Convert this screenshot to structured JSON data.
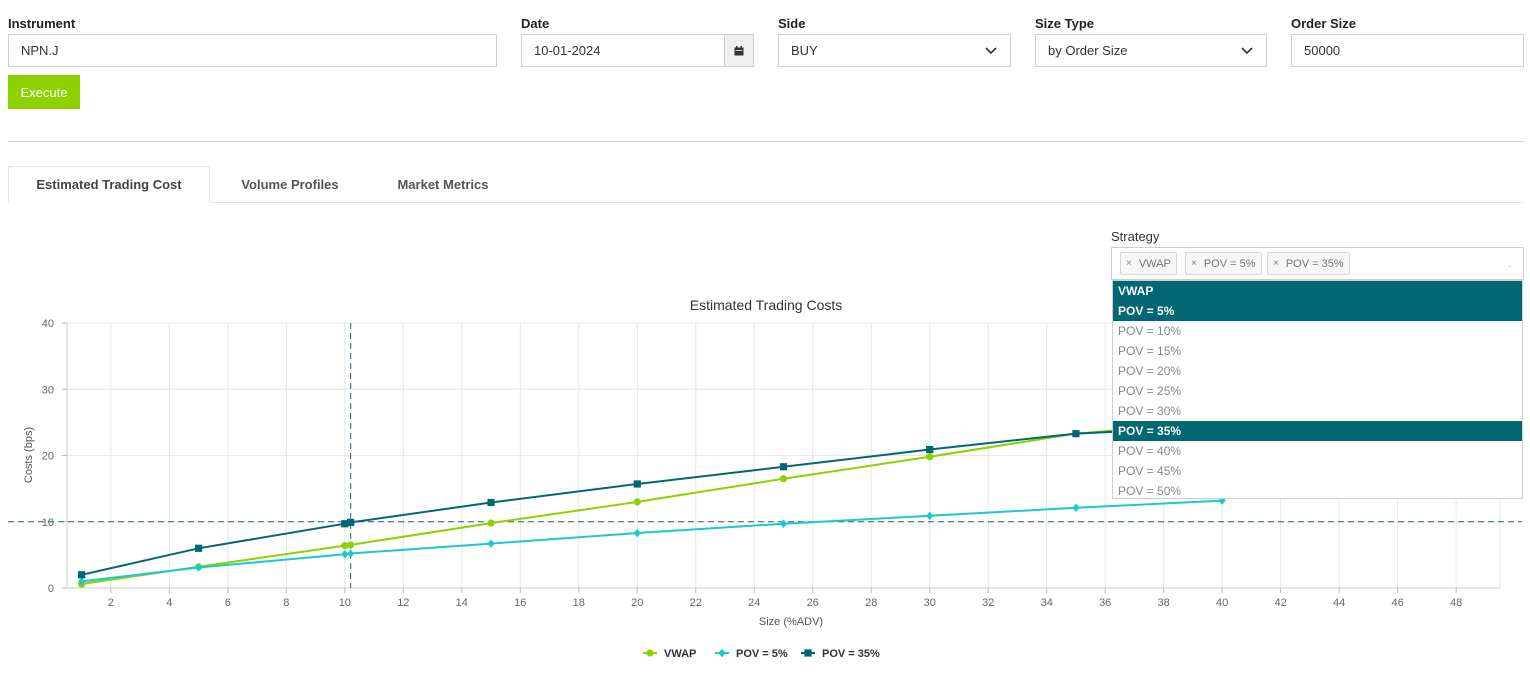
{
  "form": {
    "instrument": {
      "label": "Instrument",
      "value": "NPN.J"
    },
    "date": {
      "label": "Date",
      "value": "10-01-2024"
    },
    "side": {
      "label": "Side",
      "value": "BUY"
    },
    "size_type": {
      "label": "Size Type",
      "value": "by Order Size"
    },
    "order_size": {
      "label": "Order Size",
      "value": "50000"
    },
    "execute_label": "Execute"
  },
  "tabs": [
    "Estimated Trading Cost",
    "Volume Profiles",
    "Market Metrics"
  ],
  "strategy": {
    "label": "Strategy",
    "chips": [
      "VWAP",
      "POV = 5%",
      "POV = 35%"
    ],
    "options": [
      {
        "label": "VWAP",
        "selected": true
      },
      {
        "label": "POV = 5%",
        "selected": true
      },
      {
        "label": "POV = 10%",
        "selected": false
      },
      {
        "label": "POV = 15%",
        "selected": false
      },
      {
        "label": "POV = 20%",
        "selected": false
      },
      {
        "label": "POV = 25%",
        "selected": false
      },
      {
        "label": "POV = 30%",
        "selected": false
      },
      {
        "label": "POV = 35%",
        "selected": true
      },
      {
        "label": "POV = 40%",
        "selected": false
      },
      {
        "label": "POV = 45%",
        "selected": false
      },
      {
        "label": "POV = 50%",
        "selected": false
      }
    ]
  },
  "icons": {
    "calendar": "calendar-icon",
    "chevron": "chevron-down-icon",
    "remove": "close-icon"
  },
  "colors": {
    "accent": "#8dd100",
    "selected": "#006773",
    "vwap": "#8dd100",
    "pov5": "#1bc8d0",
    "pov35": "#006773"
  },
  "chart_data": {
    "type": "line",
    "title": "Estimated Trading Costs",
    "xlabel": "Size (%ADV)",
    "ylabel": "Costs (bps)",
    "xlim": [
      0.5,
      49.5
    ],
    "ylim": [
      0,
      40
    ],
    "xticks": [
      2,
      4,
      6,
      8,
      10,
      12,
      14,
      16,
      18,
      20,
      22,
      24,
      26,
      28,
      30,
      32,
      34,
      36,
      38,
      40,
      42,
      44,
      46,
      48
    ],
    "yticks": [
      0,
      10,
      20,
      30,
      40
    ],
    "grid": true,
    "legend_position": "bottom",
    "crosshair": {
      "x": 10.2,
      "y": 10
    },
    "series": [
      {
        "name": "VWAP",
        "marker": "circle",
        "x": [
          1,
          5,
          10,
          10.2,
          15,
          20,
          25,
          30,
          35,
          38
        ],
        "y": [
          0.6,
          3.2,
          6.4,
          6.5,
          9.8,
          13.0,
          16.5,
          19.8,
          23.3,
          24.4
        ]
      },
      {
        "name": "POV = 5%",
        "marker": "diamond",
        "x": [
          1,
          5,
          10,
          10.2,
          15,
          20,
          25,
          30,
          35,
          40
        ],
        "y": [
          1.0,
          3.1,
          5.1,
          5.2,
          6.7,
          8.3,
          9.7,
          10.9,
          12.1,
          13.2
        ]
      },
      {
        "name": "POV = 35%",
        "marker": "square",
        "x": [
          1,
          5,
          10,
          10.2,
          15,
          20,
          25,
          30,
          35,
          38.3
        ],
        "y": [
          2.0,
          6.0,
          9.7,
          9.9,
          12.9,
          15.7,
          18.3,
          20.9,
          23.3,
          24.0
        ]
      }
    ]
  }
}
